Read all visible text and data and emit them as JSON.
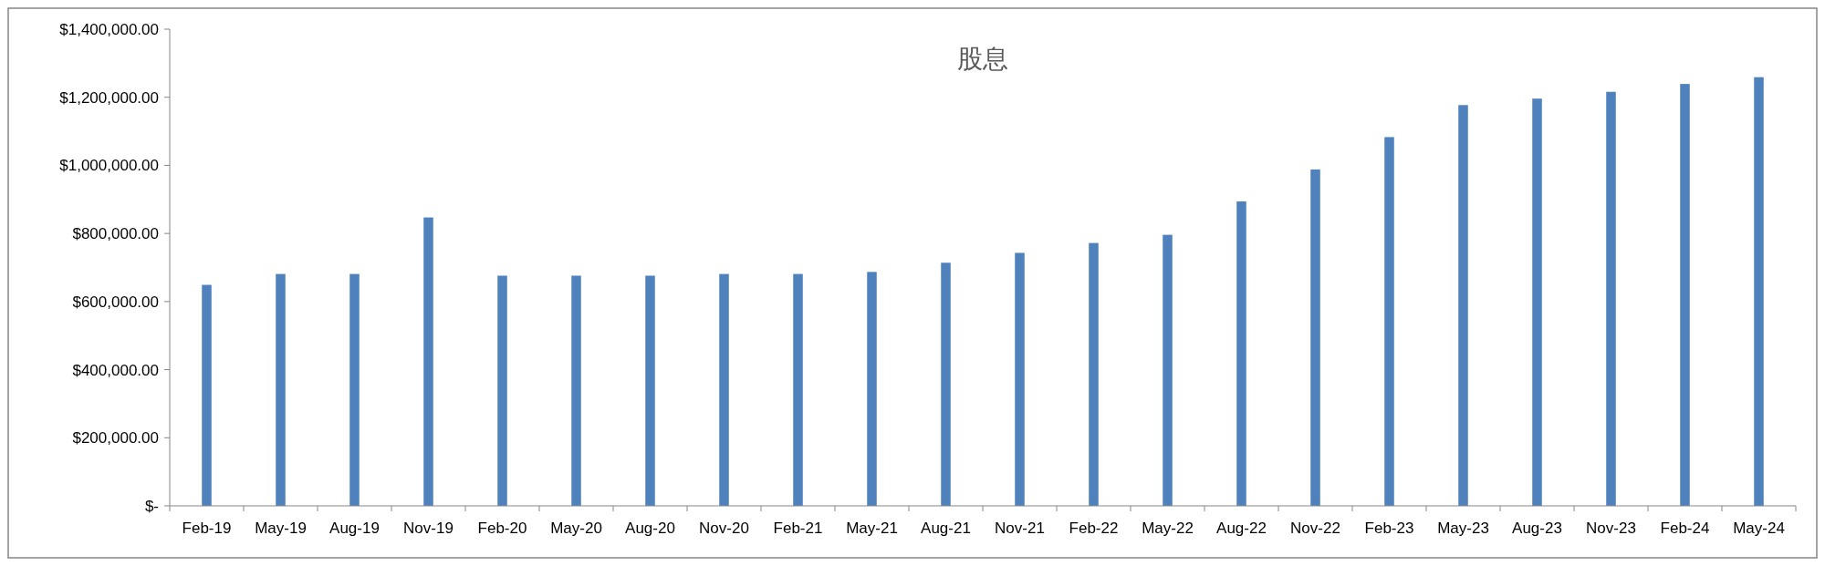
{
  "chart_data": {
    "type": "bar",
    "title": "股息",
    "categories": [
      "Feb-19",
      "May-19",
      "Aug-19",
      "Nov-19",
      "Feb-20",
      "May-20",
      "Aug-20",
      "Nov-20",
      "Feb-21",
      "May-21",
      "Aug-21",
      "Nov-21",
      "Feb-22",
      "May-22",
      "Aug-22",
      "Nov-22",
      "Feb-23",
      "May-23",
      "Aug-23",
      "Nov-23",
      "Feb-24",
      "May-24"
    ],
    "values": [
      649000,
      681000,
      681000,
      847000,
      676000,
      676000,
      676000,
      681000,
      681000,
      687000,
      714000,
      743000,
      772000,
      796000,
      894000,
      988000,
      1083000,
      1177000,
      1196000,
      1216000,
      1239000,
      1259000
    ],
    "color": "#4f81bd",
    "ylim": [
      0,
      1400000
    ],
    "yticks": [
      {
        "value": 0,
        "label": "$-"
      },
      {
        "value": 200000,
        "label": "$200,000.00"
      },
      {
        "value": 400000,
        "label": "$400,000.00"
      },
      {
        "value": 600000,
        "label": "$600,000.00"
      },
      {
        "value": 800000,
        "label": "$800,000.00"
      },
      {
        "value": 1000000,
        "label": "$1,000,000.00"
      },
      {
        "value": 1200000,
        "label": "$1,200,000.00"
      },
      {
        "value": 1400000,
        "label": "$1,400,000.00"
      }
    ],
    "grid": false
  }
}
